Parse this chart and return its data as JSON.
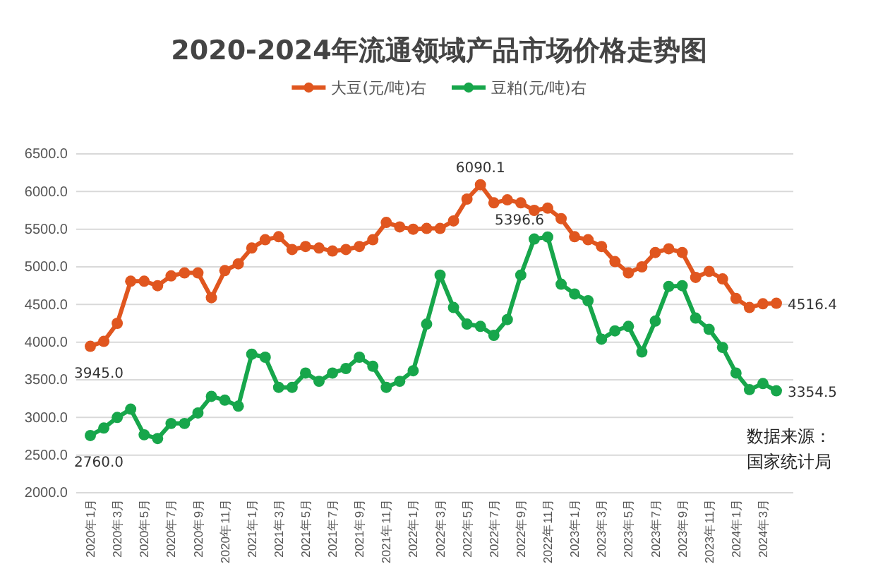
{
  "chart_data": {
    "type": "line",
    "title": "2020-2024年流通领域产品市场价格走势图",
    "categories": [
      "2020年1月",
      null,
      "2020年3月",
      null,
      "2020年5月",
      null,
      "2020年7月",
      null,
      "2020年9月",
      null,
      "2020年11月",
      null,
      "2021年1月",
      null,
      "2021年3月",
      null,
      "2021年5月",
      null,
      "2021年7月",
      null,
      "2021年9月",
      null,
      "2021年11月",
      null,
      "2022年1月",
      null,
      "2022年3月",
      null,
      "2022年5月",
      null,
      "2022年7月",
      null,
      "2022年9月",
      null,
      "2022年11月",
      null,
      "2023年1月",
      null,
      "2023年3月",
      null,
      "2023年5月",
      null,
      "2023年7月",
      null,
      "2023年9月",
      null,
      "2023年11月",
      null,
      "2024年1月",
      null,
      "2024年3月",
      null
    ],
    "series": [
      {
        "name": "大豆(元/吨)右",
        "color": "#e0561f",
        "values": [
          3945.0,
          4010,
          4250,
          4810,
          4810,
          4750,
          4880,
          4920,
          4920,
          4590,
          4950,
          5040,
          5250,
          5360,
          5400,
          5230,
          5270,
          5250,
          5210,
          5230,
          5270,
          5360,
          5590,
          5530,
          5500,
          5510,
          5510,
          5610,
          5900,
          6090.1,
          5850,
          5890,
          5850,
          5750,
          5780,
          5640,
          5400,
          5360,
          5270,
          5070,
          4920,
          5000,
          5190,
          5240,
          5190,
          4860,
          4940,
          4840,
          4580,
          4460,
          4510,
          4516.4
        ],
        "value_labels": [
          "3945.0",
          null,
          null,
          null,
          null,
          null,
          null,
          null,
          null,
          null,
          null,
          null,
          null,
          null,
          null,
          null,
          null,
          null,
          null,
          null,
          null,
          null,
          null,
          null,
          null,
          null,
          null,
          null,
          null,
          "6090.1",
          null,
          null,
          null,
          null,
          null,
          null,
          null,
          null,
          null,
          null,
          null,
          null,
          null,
          null,
          null,
          null,
          null,
          null,
          null,
          null,
          null,
          "4516.4"
        ]
      },
      {
        "name": "豆粕(元/吨)右",
        "color": "#17a64b",
        "values": [
          2760.0,
          2860,
          3000,
          3110,
          2770,
          2720,
          2920,
          2920,
          3060,
          3280,
          3230,
          3150,
          3840,
          3800,
          3400,
          3400,
          3590,
          3480,
          3590,
          3650,
          3800,
          3680,
          3400,
          3480,
          3620,
          4240,
          4890,
          4460,
          4240,
          4210,
          4090,
          4300,
          4890,
          5370,
          5396.6,
          4770,
          4640,
          4550,
          4040,
          4150,
          4210,
          3870,
          4280,
          4740,
          4750,
          4320,
          4170,
          3930,
          3590,
          3370,
          3450,
          3354.5
        ],
        "value_labels": [
          "2760.0",
          null,
          null,
          null,
          null,
          null,
          null,
          null,
          null,
          null,
          null,
          null,
          null,
          null,
          null,
          null,
          null,
          null,
          null,
          null,
          null,
          null,
          null,
          null,
          null,
          null,
          null,
          null,
          null,
          null,
          null,
          null,
          null,
          null,
          "5396.6",
          null,
          null,
          null,
          null,
          null,
          null,
          null,
          null,
          null,
          null,
          null,
          null,
          null,
          null,
          null,
          null,
          "3354.5"
        ]
      }
    ],
    "ylim": [
      2000,
      6500
    ],
    "yticks": [
      {
        "value": 2000,
        "label": "2000.0"
      },
      {
        "value": 2500,
        "label": "2500.0"
      },
      {
        "value": 3000,
        "label": "3000.0"
      },
      {
        "value": 3500,
        "label": "3500.0"
      },
      {
        "value": 4000,
        "label": "4000.0"
      },
      {
        "value": 4500,
        "label": "4500.0"
      },
      {
        "value": 5000,
        "label": "5000.0"
      },
      {
        "value": 5500,
        "label": "5500.0"
      },
      {
        "value": 6000,
        "label": "6000.0"
      },
      {
        "value": 6500,
        "label": "6500.0"
      }
    ],
    "grid": "y",
    "legend": "top",
    "marker": "circle",
    "line_style": "solid",
    "annotations": [
      "数据来源：国家统计局"
    ]
  }
}
